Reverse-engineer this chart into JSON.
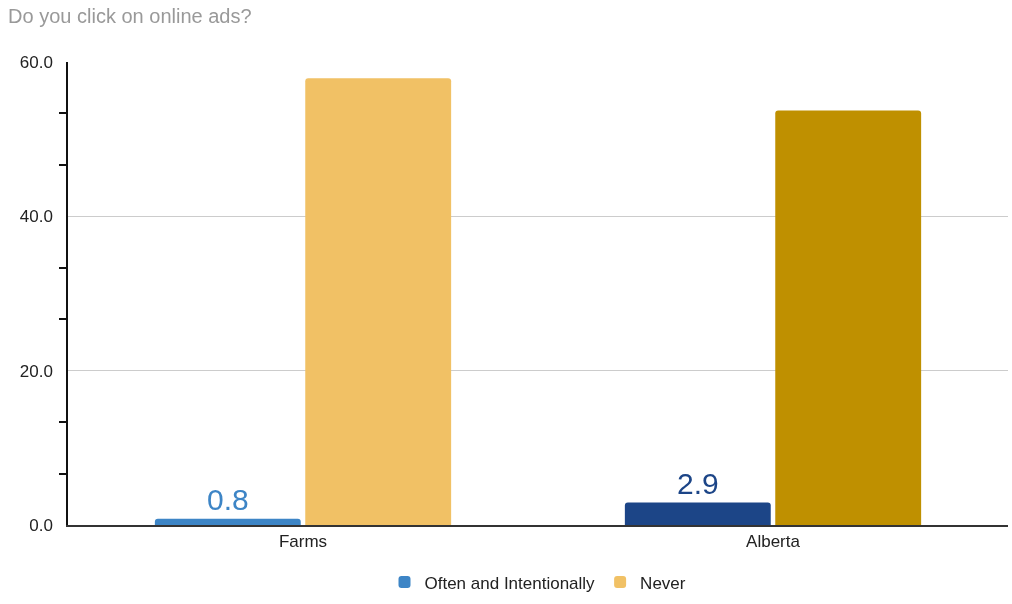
{
  "chart_data": {
    "type": "bar",
    "title": "Do you click on online ads?",
    "categories": [
      "Farms",
      "Alberta"
    ],
    "series": [
      {
        "name": "Often and Intentionally",
        "colors": [
          "#3d85c6",
          "#1c4587"
        ],
        "values": [
          0.8,
          2.9
        ],
        "value_labels": [
          "0.8",
          "2.9"
        ]
      },
      {
        "name": "Never",
        "colors": [
          "#f1c165",
          "#bf9000"
        ],
        "values": [
          57.9,
          53.7
        ]
      }
    ],
    "ylim": [
      0,
      60
    ],
    "yticks": [
      {
        "value": 0,
        "label": "0.0"
      },
      {
        "value": 6.667,
        "label": null
      },
      {
        "value": 13.333,
        "label": null
      },
      {
        "value": 20,
        "label": "20.0"
      },
      {
        "value": 26.667,
        "label": null
      },
      {
        "value": 33.333,
        "label": null
      },
      {
        "value": 40,
        "label": "40.0"
      },
      {
        "value": 46.667,
        "label": null
      },
      {
        "value": 53.333,
        "label": null
      },
      {
        "value": 60,
        "label": "60.0"
      }
    ],
    "grid": "y",
    "legend": "bottom"
  }
}
